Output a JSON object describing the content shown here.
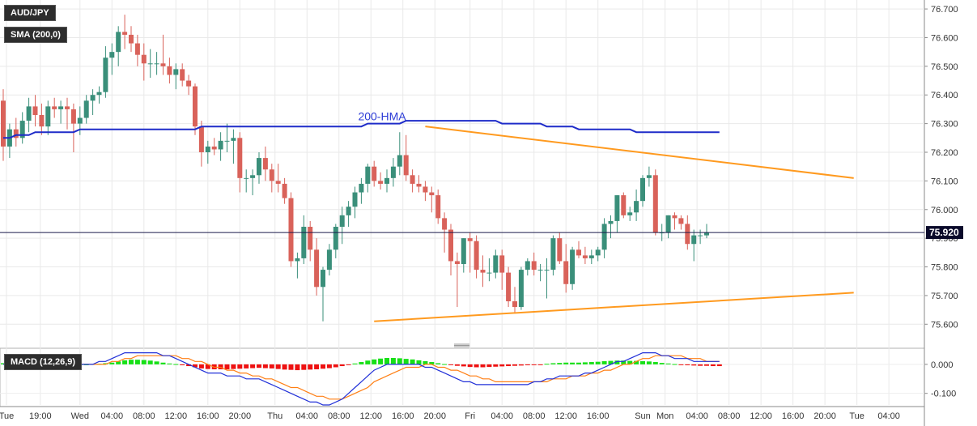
{
  "labels": {
    "symbol": "AUD/JPY",
    "sma": "SMA (200,0)",
    "macd": "MACD (12,26,9)",
    "hma": "200-HMA"
  },
  "last_price": "75.920",
  "colors": {
    "bull": "#3a8f7a",
    "bear": "#d9625a",
    "hma": "#1f2cc9",
    "trend": "#ff9a1f",
    "hist_pos": "#16e016",
    "hist_neg": "#ee1111",
    "macd_line": "#2130d8",
    "signal_line": "#ff7f14",
    "price_tag": "#0a0a2a"
  },
  "chart_data": [
    {
      "type": "candlestick",
      "ylim": [
        75.55,
        76.72
      ],
      "y_ticks": [
        "76.700",
        "76.600",
        "76.500",
        "76.400",
        "76.300",
        "76.200",
        "76.100",
        "76.000",
        "75.900",
        "75.800",
        "75.700",
        "75.600"
      ],
      "x_ticks": [
        "Tue",
        "19:00",
        "Wed",
        "04:00",
        "08:00",
        "12:00",
        "16:00",
        "20:00",
        "Thu",
        "04:00",
        "08:00",
        "12:00",
        "16:00",
        "20:00",
        "Fri",
        "04:00",
        "08:00",
        "12:00",
        "16:00",
        "Sun",
        "Mon",
        "04:00",
        "08:00",
        "12:00",
        "16:00",
        "20:00",
        "Tue",
        "04:00"
      ],
      "candles": [
        [
          76.38,
          76.42,
          76.17,
          76.22
        ],
        [
          76.22,
          76.3,
          76.18,
          76.28
        ],
        [
          76.28,
          76.32,
          76.22,
          76.25
        ],
        [
          76.25,
          76.34,
          76.23,
          76.31
        ],
        [
          76.31,
          76.39,
          76.27,
          76.36
        ],
        [
          76.36,
          76.4,
          76.29,
          76.33
        ],
        [
          76.33,
          76.37,
          76.26,
          76.29
        ],
        [
          76.29,
          76.38,
          76.26,
          76.36
        ],
        [
          76.36,
          76.39,
          76.32,
          76.35
        ],
        [
          76.35,
          76.38,
          76.3,
          76.36
        ],
        [
          76.36,
          76.39,
          76.28,
          76.35
        ],
        [
          76.35,
          76.37,
          76.2,
          76.3
        ],
        [
          76.3,
          76.36,
          76.26,
          76.32
        ],
        [
          76.32,
          76.4,
          76.3,
          76.38
        ],
        [
          76.38,
          76.42,
          76.33,
          76.4
        ],
        [
          76.4,
          76.43,
          76.37,
          76.41
        ],
        [
          76.41,
          76.57,
          76.39,
          76.53
        ],
        [
          76.53,
          76.58,
          76.47,
          76.55
        ],
        [
          76.55,
          76.64,
          76.5,
          76.62
        ],
        [
          76.62,
          76.68,
          76.56,
          76.61
        ],
        [
          76.61,
          76.64,
          76.55,
          76.58
        ],
        [
          76.58,
          76.61,
          76.5,
          76.54
        ],
        [
          76.54,
          76.58,
          76.45,
          76.51
        ],
        [
          76.51,
          76.56,
          76.46,
          76.51
        ],
        [
          76.51,
          76.55,
          76.47,
          76.51
        ],
        [
          76.51,
          76.61,
          76.47,
          76.5
        ],
        [
          76.5,
          76.53,
          76.44,
          76.47
        ],
        [
          76.47,
          76.51,
          76.42,
          76.49
        ],
        [
          76.49,
          76.51,
          76.43,
          76.45
        ],
        [
          76.45,
          76.47,
          76.4,
          76.43
        ],
        [
          76.43,
          76.44,
          76.26,
          76.29
        ],
        [
          76.29,
          76.31,
          76.15,
          76.2
        ],
        [
          76.2,
          76.24,
          76.16,
          76.22
        ],
        [
          76.22,
          76.25,
          76.19,
          76.21
        ],
        [
          76.21,
          76.27,
          76.17,
          76.24
        ],
        [
          76.24,
          76.3,
          76.2,
          76.24
        ],
        [
          76.24,
          76.28,
          76.16,
          76.25
        ],
        [
          76.25,
          76.27,
          76.06,
          76.11
        ],
        [
          76.11,
          76.14,
          76.06,
          76.11
        ],
        [
          76.11,
          76.14,
          76.05,
          76.12
        ],
        [
          76.12,
          76.2,
          76.09,
          76.18
        ],
        [
          76.18,
          76.22,
          76.1,
          76.14
        ],
        [
          76.14,
          76.16,
          76.06,
          76.1
        ],
        [
          76.1,
          76.16,
          76.06,
          76.09
        ],
        [
          76.09,
          76.11,
          76.02,
          76.04
        ],
        [
          76.04,
          76.06,
          75.8,
          75.82
        ],
        [
          75.82,
          75.85,
          75.76,
          75.83
        ],
        [
          75.83,
          75.98,
          75.81,
          75.94
        ],
        [
          75.94,
          75.96,
          75.82,
          75.86
        ],
        [
          75.86,
          75.9,
          75.7,
          75.73
        ],
        [
          75.73,
          75.8,
          75.61,
          75.79
        ],
        [
          75.79,
          75.88,
          75.77,
          75.86
        ],
        [
          75.86,
          75.95,
          75.83,
          75.94
        ],
        [
          75.94,
          76.01,
          75.88,
          75.98
        ],
        [
          75.98,
          76.03,
          75.94,
          76.01
        ],
        [
          76.01,
          76.08,
          75.97,
          76.06
        ],
        [
          76.06,
          76.11,
          76.02,
          76.09
        ],
        [
          76.09,
          76.16,
          76.06,
          76.15
        ],
        [
          76.15,
          76.17,
          76.08,
          76.1
        ],
        [
          76.1,
          76.13,
          76.07,
          76.09
        ],
        [
          76.09,
          76.14,
          76.06,
          76.11
        ],
        [
          76.11,
          76.18,
          76.08,
          76.15
        ],
        [
          76.15,
          76.27,
          76.12,
          76.19
        ],
        [
          76.19,
          76.26,
          76.1,
          76.12
        ],
        [
          76.12,
          76.14,
          76.06,
          76.09
        ],
        [
          76.09,
          76.12,
          76.06,
          76.08
        ],
        [
          76.08,
          76.1,
          76.03,
          76.06
        ],
        [
          76.06,
          76.08,
          75.99,
          76.05
        ],
        [
          76.05,
          76.07,
          75.95,
          75.97
        ],
        [
          75.97,
          75.99,
          75.85,
          75.93
        ],
        [
          75.93,
          75.95,
          75.77,
          75.82
        ],
        [
          75.82,
          75.85,
          75.66,
          75.81
        ],
        [
          75.81,
          75.9,
          75.78,
          75.9
        ],
        [
          75.9,
          75.92,
          75.78,
          75.89
        ],
        [
          75.89,
          75.91,
          75.76,
          75.79
        ],
        [
          75.79,
          75.84,
          75.73,
          75.78
        ],
        [
          75.78,
          75.83,
          75.75,
          75.78
        ],
        [
          75.78,
          75.86,
          75.76,
          75.84
        ],
        [
          75.84,
          75.86,
          75.72,
          75.78
        ],
        [
          75.78,
          75.8,
          75.66,
          75.68
        ],
        [
          75.68,
          75.73,
          75.64,
          75.66
        ],
        [
          75.66,
          75.8,
          75.65,
          75.79
        ],
        [
          75.79,
          75.83,
          75.77,
          75.82
        ],
        [
          75.82,
          75.85,
          75.77,
          75.79
        ],
        [
          75.79,
          75.81,
          75.75,
          75.79
        ],
        [
          75.79,
          75.83,
          75.69,
          75.79
        ],
        [
          75.79,
          75.91,
          75.77,
          75.9
        ],
        [
          75.9,
          75.92,
          75.81,
          75.82
        ],
        [
          75.82,
          75.88,
          75.71,
          75.74
        ],
        [
          75.74,
          75.87,
          75.72,
          75.86
        ],
        [
          75.86,
          75.89,
          75.83,
          75.84
        ],
        [
          75.84,
          75.87,
          75.81,
          75.83
        ],
        [
          75.83,
          75.86,
          75.81,
          75.84
        ],
        [
          75.84,
          75.87,
          75.82,
          75.86
        ],
        [
          75.86,
          75.97,
          75.83,
          75.95
        ],
        [
          75.95,
          75.98,
          75.9,
          75.96
        ],
        [
          75.96,
          76.05,
          75.92,
          76.05
        ],
        [
          76.05,
          76.06,
          75.97,
          75.98
        ],
        [
          75.98,
          76.01,
          75.96,
          75.99
        ],
        [
          75.99,
          76.07,
          75.96,
          76.03
        ],
        [
          76.03,
          76.12,
          76.01,
          76.11
        ],
        [
          76.11,
          76.15,
          76.08,
          76.12
        ],
        [
          76.12,
          76.14,
          75.91,
          75.92
        ],
        [
          75.92,
          75.95,
          75.89,
          75.92
        ],
        [
          75.92,
          75.98,
          75.9,
          75.98
        ],
        [
          75.98,
          75.99,
          75.93,
          75.97
        ],
        [
          75.97,
          75.98,
          75.93,
          75.95
        ],
        [
          75.95,
          75.98,
          75.86,
          75.88
        ],
        [
          75.88,
          75.93,
          75.82,
          75.91
        ],
        [
          75.91,
          75.93,
          75.88,
          75.91
        ],
        [
          75.91,
          75.95,
          75.9,
          75.92
        ]
      ],
      "hma_200": [
        76.25,
        76.25,
        76.26,
        76.26,
        76.26,
        76.27,
        76.27,
        76.27,
        76.27,
        76.27,
        76.27,
        76.27,
        76.28,
        76.28,
        76.28,
        76.28,
        76.28,
        76.28,
        76.28,
        76.28,
        76.28,
        76.28,
        76.28,
        76.28,
        76.28,
        76.28,
        76.28,
        76.28,
        76.28,
        76.28,
        76.28,
        76.29,
        76.29,
        76.29,
        76.29,
        76.29,
        76.29,
        76.29,
        76.29,
        76.29,
        76.29,
        76.29,
        76.29,
        76.29,
        76.29,
        76.29,
        76.29,
        76.29,
        76.29,
        76.29,
        76.29,
        76.29,
        76.29,
        76.29,
        76.29,
        76.29,
        76.29,
        76.3,
        76.3,
        76.3,
        76.3,
        76.3,
        76.3,
        76.31,
        76.31,
        76.31,
        76.31,
        76.31,
        76.31,
        76.31,
        76.31,
        76.31,
        76.31,
        76.31,
        76.31,
        76.31,
        76.31,
        76.31,
        76.3,
        76.3,
        76.3,
        76.3,
        76.3,
        76.3,
        76.3,
        76.29,
        76.29,
        76.29,
        76.29,
        76.29,
        76.28,
        76.28,
        76.28,
        76.28,
        76.28,
        76.28,
        76.28,
        76.28,
        76.28,
        76.27,
        76.27,
        76.27,
        76.27,
        76.27,
        76.27,
        76.27,
        76.27,
        76.27,
        76.27,
        76.27,
        76.27,
        76.27,
        76.27
      ],
      "current_price": 75.92,
      "trendlines": [
        {
          "from": [
            66,
            76.29
          ],
          "to": [
            133,
            76.11
          ]
        },
        {
          "from": [
            58,
            75.61
          ],
          "to": [
            133,
            75.71
          ]
        }
      ],
      "annotations": [
        "200-HMA"
      ],
      "grid": true
    },
    {
      "type": "macd",
      "ylim": [
        -0.14,
        0.05
      ],
      "y_ticks": [
        "0.000",
        "-0.100"
      ],
      "histogram": [
        0.004,
        0.003,
        0.002,
        0.001,
        0.002,
        0.003,
        0.002,
        0.0,
        0.001,
        0.001,
        0.002,
        0.001,
        0.0,
        0.0,
        0.001,
        0.002,
        0.004,
        0.006,
        0.01,
        0.014,
        0.016,
        0.016,
        0.015,
        0.013,
        0.01,
        0.006,
        0.003,
        0.001,
        -0.003,
        -0.006,
        -0.01,
        -0.014,
        -0.016,
        -0.017,
        -0.017,
        -0.017,
        -0.016,
        -0.015,
        -0.014,
        -0.013,
        -0.012,
        -0.013,
        -0.014,
        -0.016,
        -0.018,
        -0.019,
        -0.02,
        -0.019,
        -0.018,
        -0.017,
        -0.015,
        -0.013,
        -0.01,
        -0.006,
        -0.002,
        0.003,
        0.008,
        0.013,
        0.017,
        0.02,
        0.022,
        0.022,
        0.021,
        0.019,
        0.017,
        0.014,
        0.011,
        0.008,
        0.004,
        0.001,
        -0.002,
        -0.005,
        -0.007,
        -0.009,
        -0.01,
        -0.01,
        -0.009,
        -0.008,
        -0.007,
        -0.006,
        -0.005,
        -0.004,
        -0.003,
        -0.002,
        -0.001,
        0.002,
        0.004,
        0.005,
        0.006,
        0.006,
        0.006,
        0.007,
        0.008,
        0.009,
        0.011,
        0.012,
        0.013,
        0.013,
        0.012,
        0.012,
        0.011,
        0.01,
        0.008,
        0.005,
        0.003,
        0.001,
        -0.001,
        -0.003,
        -0.004,
        -0.005,
        -0.005,
        -0.006,
        -0.006
      ],
      "macd_line": [
        0.0,
        0.0,
        0.0,
        0.0,
        0.0,
        0.0,
        0.0,
        0.0,
        0.0,
        0.0,
        0.0,
        0.0,
        0.0,
        0.0,
        0.0,
        0.01,
        0.01,
        0.02,
        0.03,
        0.04,
        0.04,
        0.04,
        0.04,
        0.04,
        0.04,
        0.03,
        0.03,
        0.02,
        0.01,
        0.0,
        -0.01,
        -0.02,
        -0.03,
        -0.03,
        -0.03,
        -0.04,
        -0.04,
        -0.04,
        -0.05,
        -0.05,
        -0.05,
        -0.06,
        -0.07,
        -0.08,
        -0.09,
        -0.1,
        -0.11,
        -0.12,
        -0.13,
        -0.13,
        -0.14,
        -0.14,
        -0.13,
        -0.12,
        -0.1,
        -0.08,
        -0.06,
        -0.04,
        -0.02,
        -0.01,
        0.0,
        0.0,
        0.0,
        0.0,
        0.0,
        0.0,
        -0.01,
        -0.01,
        -0.02,
        -0.03,
        -0.04,
        -0.05,
        -0.06,
        -0.06,
        -0.07,
        -0.07,
        -0.07,
        -0.07,
        -0.07,
        -0.07,
        -0.07,
        -0.07,
        -0.07,
        -0.06,
        -0.06,
        -0.05,
        -0.05,
        -0.04,
        -0.04,
        -0.04,
        -0.04,
        -0.03,
        -0.03,
        -0.02,
        -0.01,
        0.0,
        0.01,
        0.01,
        0.02,
        0.03,
        0.04,
        0.04,
        0.04,
        0.03,
        0.03,
        0.02,
        0.02,
        0.02,
        0.01,
        0.01,
        0.01,
        0.01,
        0.01
      ],
      "signal_line": [
        0.0,
        0.0,
        0.0,
        0.0,
        0.0,
        0.0,
        0.0,
        0.0,
        0.0,
        0.0,
        0.0,
        0.0,
        0.0,
        0.0,
        0.0,
        0.0,
        0.0,
        0.01,
        0.01,
        0.02,
        0.02,
        0.03,
        0.03,
        0.03,
        0.03,
        0.03,
        0.03,
        0.03,
        0.02,
        0.02,
        0.01,
        0.01,
        0.0,
        -0.01,
        -0.01,
        -0.02,
        -0.02,
        -0.03,
        -0.03,
        -0.04,
        -0.04,
        -0.05,
        -0.05,
        -0.06,
        -0.07,
        -0.08,
        -0.08,
        -0.09,
        -0.1,
        -0.11,
        -0.11,
        -0.12,
        -0.12,
        -0.12,
        -0.11,
        -0.1,
        -0.09,
        -0.08,
        -0.06,
        -0.05,
        -0.04,
        -0.03,
        -0.02,
        -0.01,
        -0.01,
        -0.01,
        0.0,
        0.0,
        -0.01,
        -0.01,
        -0.02,
        -0.02,
        -0.03,
        -0.04,
        -0.04,
        -0.05,
        -0.05,
        -0.06,
        -0.06,
        -0.06,
        -0.06,
        -0.06,
        -0.06,
        -0.06,
        -0.06,
        -0.06,
        -0.05,
        -0.05,
        -0.05,
        -0.04,
        -0.04,
        -0.04,
        -0.03,
        -0.03,
        -0.02,
        -0.02,
        -0.01,
        0.0,
        0.0,
        0.01,
        0.02,
        0.02,
        0.03,
        0.03,
        0.03,
        0.03,
        0.03,
        0.02,
        0.02,
        0.02,
        0.01,
        0.01,
        0.01
      ],
      "grid": true
    }
  ]
}
